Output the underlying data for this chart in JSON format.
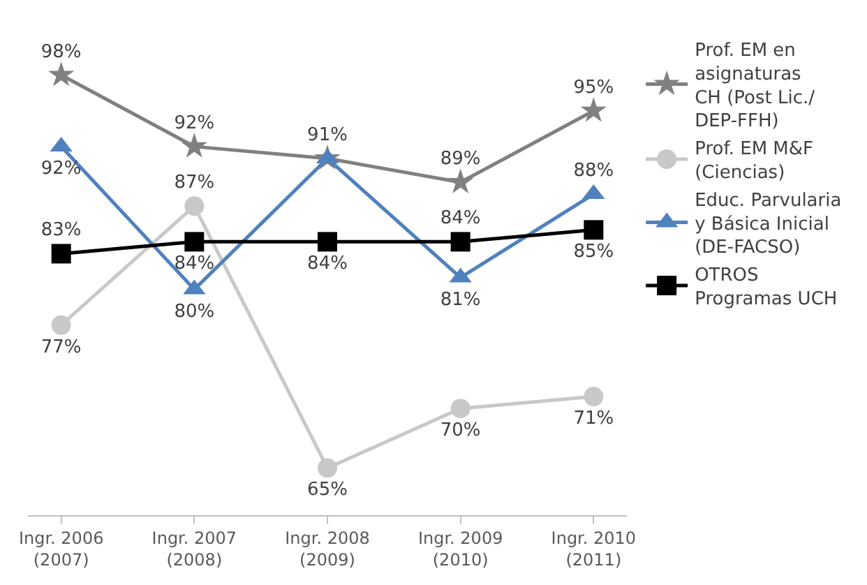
{
  "chart_data": {
    "type": "line",
    "categories": [
      "Ingr. 2006\n(2007)",
      "Ingr. 2007\n(2008)",
      "Ingr. 2008\n(2009)",
      "Ingr. 2009\n(2010)",
      "Ingr. 2010\n(2011)"
    ],
    "series": [
      {
        "name": "Prof. EM en\nasignaturas\nCH (Post Lic./\nDEP-FFH)",
        "color": "#808080",
        "marker": "star",
        "values": [
          98,
          92,
          91,
          89,
          95
        ],
        "value_labels": [
          "98%",
          "92%",
          "91%",
          "89%",
          "95%"
        ]
      },
      {
        "name": "Prof. EM M&F\n(Ciencias)",
        "color": "#c8c8c8",
        "marker": "circle",
        "values": [
          77,
          87,
          65,
          70,
          71
        ],
        "value_labels": [
          "77%",
          "87%",
          "65%",
          "70%",
          "71%"
        ]
      },
      {
        "name": "Educ. Parvularia\ny Básica Inicial\n(DE-FACSO)",
        "color": "#4f81bd",
        "marker": "triangle",
        "values": [
          92,
          80,
          91,
          81,
          88
        ],
        "value_labels": [
          "92%",
          "80%",
          null,
          "81%",
          "88%"
        ]
      },
      {
        "name": "OTROS\nProgramas UCH",
        "color": "#000000",
        "marker": "square",
        "values": [
          83,
          84,
          84,
          84,
          85
        ],
        "value_labels": [
          "83%",
          "84%",
          "84%",
          "84%",
          "85%"
        ]
      }
    ],
    "legend": "right"
  }
}
